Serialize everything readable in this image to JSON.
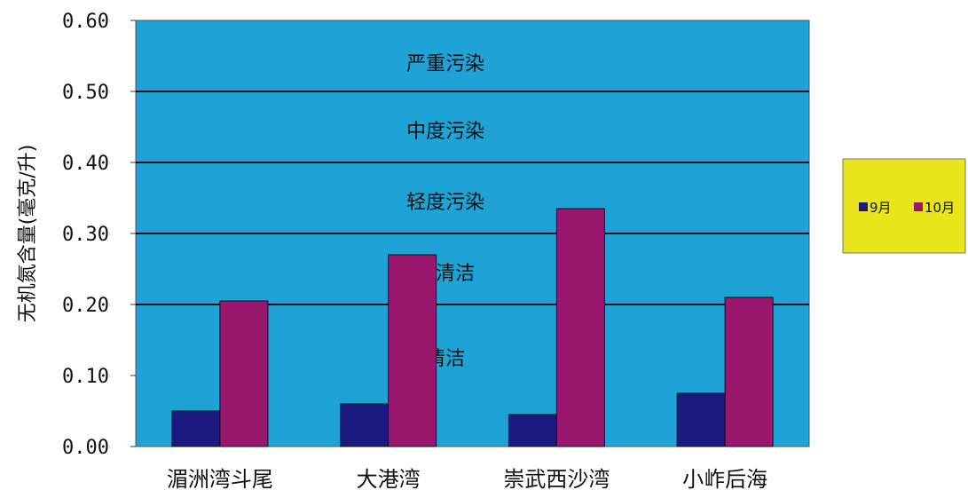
{
  "chart_data": {
    "type": "bar",
    "categories": [
      "湄洲湾斗尾",
      "大港湾",
      "崇武西沙湾",
      "小岞后海"
    ],
    "series": [
      {
        "name": "9月",
        "color": "#1a1a80",
        "values": [
          0.05,
          0.06,
          0.045,
          0.075
        ]
      },
      {
        "name": "10月",
        "color": "#99186e",
        "values": [
          0.205,
          0.27,
          0.335,
          0.21
        ]
      }
    ],
    "ylabel": "无机氮含量(毫克/升)",
    "xlabel": "",
    "ylim": [
      0,
      0.6
    ],
    "yticks": [
      "0.00",
      "0.10",
      "0.20",
      "0.30",
      "0.40",
      "0.50",
      "0.60"
    ],
    "gridlines": [
      0.2,
      0.3,
      0.4,
      0.5
    ],
    "zones": [
      {
        "label": "严重污染",
        "y": 0.54
      },
      {
        "label": "中度污染",
        "y": 0.445
      },
      {
        "label": "轻度污染",
        "y": 0.345
      },
      {
        "label": "较清洁",
        "y": 0.245
      },
      {
        "label": "清洁",
        "y": 0.125
      }
    ],
    "legend_placement": "right",
    "plot_background": "#1fa3d6",
    "legend_background": "#e8e61a"
  }
}
